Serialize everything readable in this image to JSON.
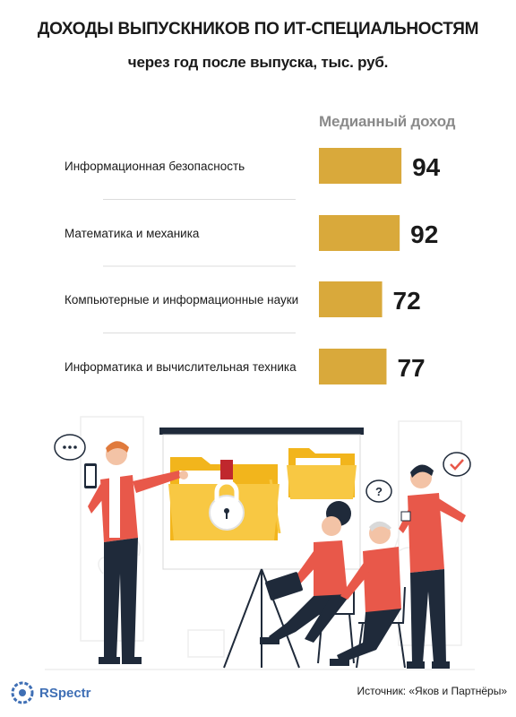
{
  "header": {
    "title": "ДОХОДЫ ВЫПУСКНИКОВ ПО ИТ-СПЕЦИАЛЬНОСТЯМ",
    "subtitle": "через год после выпуска, тыс. руб."
  },
  "chart_data": {
    "type": "bar",
    "orientation": "horizontal",
    "series_label": "Медианный доход",
    "categories": [
      "Информационная безопасность",
      "Математика и механика",
      "Компьютерные и информационные науки",
      "Информатика и вычислительная техника"
    ],
    "values": [
      94,
      92,
      72,
      77
    ],
    "value_labels": [
      "94",
      "92",
      "72",
      "77"
    ],
    "bar_color": "#d9a93b",
    "grid": false,
    "legend": "none"
  },
  "footer": {
    "source": "Источник: «Яков и Партнёры»",
    "brand": "RSpectr",
    "brand_color": "#3f6fb5"
  },
  "colors": {
    "accent_red": "#e8584a",
    "folder_yellow": "#f2b51c",
    "dark": "#1f2a3a"
  }
}
